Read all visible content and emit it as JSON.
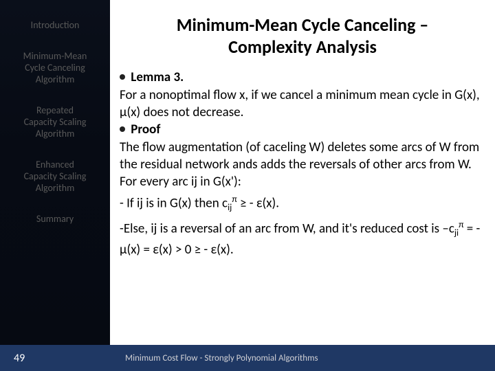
{
  "sidebar": {
    "items": [
      {
        "label": "Introduction"
      },
      {
        "label_l1": "Minimum-Mean",
        "label_l2": "Cycle Canceling",
        "label_l3": "Algorithm"
      },
      {
        "label_l1": "Repeated",
        "label_l2": "Capacity Scaling",
        "label_l3": "Algorithm"
      },
      {
        "label_l1": "Enhanced",
        "label_l2": "Capacity Scaling",
        "label_l3": "Algorithm"
      },
      {
        "label": "Summary"
      }
    ],
    "page_number": "49"
  },
  "main": {
    "title_l1": "Minimum-Mean Cycle Canceling –",
    "title_l2": "Complexity Analysis",
    "lemma_label": "Lemma 3.",
    "lemma_text": "For a nonoptimal flow x, if we cancel a minimum mean cycle in G(x), μ(x) does not decrease.",
    "proof_label": "Proof",
    "proof_p1": "The flow augmentation (of caceling W) deletes some arcs of W from the residual network ands adds the reversals of other arcs from W.",
    "proof_p2": "For every arc ij in G(x'):",
    "proof_p3a": "- If ij is in G(x) then c",
    "proof_p3_sub": "ij",
    "proof_p3_sup": "π",
    "proof_p3b": " ≥ - ε(x).",
    "proof_p4a": "-Else, ij is a reversal of an arc from W, and it's reduced cost is –c",
    "proof_p4_sub": "ji",
    "proof_p4_sup": "π",
    "proof_p4b": " = - μ(x) = ε(x) > 0 ≥ - ε(x)."
  },
  "footer": {
    "text": "Minimum Cost Flow - Strongly Polynomial Algorithms"
  },
  "style": {
    "sidebar_bg": "#070b14",
    "footer_bg": "#1f3864",
    "nav_text_color": "#595959",
    "body_text_color": "#000000",
    "title_fontsize": 26,
    "body_fontsize": 19,
    "nav_fontsize": 14
  }
}
